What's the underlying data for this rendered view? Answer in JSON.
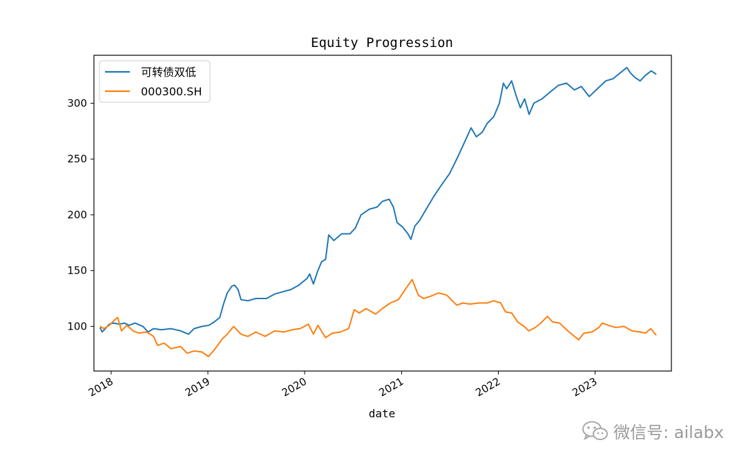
{
  "chart_data": {
    "type": "line",
    "title": "Equity Progression",
    "xlabel": "date",
    "ylabel": "",
    "x_ticks": [
      "2018",
      "2019",
      "2020",
      "2021",
      "2022",
      "2023"
    ],
    "y_ticks": [
      100,
      150,
      200,
      250,
      300
    ],
    "xlim": [
      "2017-10-28",
      "2023-10-16"
    ],
    "ylim": [
      60,
      343
    ],
    "grid": false,
    "legend_position": "upper-left",
    "series": [
      {
        "name": "可转债双低",
        "color": "#1f77b4",
        "points": [
          [
            "2017-11-20",
            99
          ],
          [
            "2017-11-28",
            95
          ],
          [
            "2017-12-10",
            98
          ],
          [
            "2017-12-25",
            102
          ],
          [
            "2018-01-10",
            103
          ],
          [
            "2018-02-01",
            102
          ],
          [
            "2018-02-20",
            103
          ],
          [
            "2018-03-10",
            101
          ],
          [
            "2018-04-01",
            103
          ],
          [
            "2018-05-01",
            100
          ],
          [
            "2018-05-20",
            95
          ],
          [
            "2018-06-10",
            98
          ],
          [
            "2018-07-10",
            97
          ],
          [
            "2018-08-15",
            98
          ],
          [
            "2018-09-20",
            96
          ],
          [
            "2018-10-20",
            93
          ],
          [
            "2018-11-10",
            98
          ],
          [
            "2018-12-10",
            100
          ],
          [
            "2019-01-05",
            101
          ],
          [
            "2019-01-25",
            104
          ],
          [
            "2019-02-15",
            108
          ],
          [
            "2019-03-01",
            120
          ],
          [
            "2019-03-15",
            130
          ],
          [
            "2019-04-01",
            136
          ],
          [
            "2019-04-12",
            137
          ],
          [
            "2019-04-25",
            133
          ],
          [
            "2019-05-06",
            124
          ],
          [
            "2019-06-01",
            123
          ],
          [
            "2019-07-01",
            125
          ],
          [
            "2019-08-10",
            125
          ],
          [
            "2019-09-10",
            129
          ],
          [
            "2019-10-10",
            131
          ],
          [
            "2019-11-10",
            133
          ],
          [
            "2019-12-10",
            137
          ],
          [
            "2020-01-10",
            143
          ],
          [
            "2020-01-20",
            147
          ],
          [
            "2020-02-03",
            138
          ],
          [
            "2020-02-20",
            150
          ],
          [
            "2020-03-05",
            158
          ],
          [
            "2020-03-20",
            160
          ],
          [
            "2020-04-01",
            182
          ],
          [
            "2020-04-20",
            177
          ],
          [
            "2020-05-20",
            183
          ],
          [
            "2020-06-20",
            183
          ],
          [
            "2020-07-10",
            188
          ],
          [
            "2020-08-01",
            200
          ],
          [
            "2020-09-01",
            205
          ],
          [
            "2020-10-01",
            207
          ],
          [
            "2020-10-20",
            212
          ],
          [
            "2020-11-15",
            214
          ],
          [
            "2020-12-01",
            207
          ],
          [
            "2020-12-15",
            193
          ],
          [
            "2021-01-05",
            189
          ],
          [
            "2021-01-25",
            183
          ],
          [
            "2021-02-05",
            178
          ],
          [
            "2021-02-20",
            190
          ],
          [
            "2021-03-10",
            195
          ],
          [
            "2021-04-01",
            204
          ],
          [
            "2021-05-01",
            216
          ],
          [
            "2021-06-01",
            227
          ],
          [
            "2021-07-01",
            237
          ],
          [
            "2021-08-01",
            252
          ],
          [
            "2021-09-01",
            268
          ],
          [
            "2021-09-20",
            278
          ],
          [
            "2021-10-10",
            270
          ],
          [
            "2021-11-01",
            274
          ],
          [
            "2021-11-20",
            282
          ],
          [
            "2021-12-15",
            288
          ],
          [
            "2022-01-05",
            300
          ],
          [
            "2022-01-20",
            318
          ],
          [
            "2022-02-01",
            313
          ],
          [
            "2022-02-20",
            320
          ],
          [
            "2022-03-10",
            306
          ],
          [
            "2022-03-25",
            296
          ],
          [
            "2022-04-10",
            304
          ],
          [
            "2022-04-27",
            290
          ],
          [
            "2022-05-15",
            300
          ],
          [
            "2022-06-15",
            304
          ],
          [
            "2022-07-15",
            310
          ],
          [
            "2022-08-15",
            316
          ],
          [
            "2022-09-15",
            318
          ],
          [
            "2022-10-15",
            312
          ],
          [
            "2022-11-10",
            315
          ],
          [
            "2022-12-10",
            306
          ],
          [
            "2023-01-10",
            313
          ],
          [
            "2023-02-10",
            320
          ],
          [
            "2023-03-10",
            322
          ],
          [
            "2023-04-10",
            328
          ],
          [
            "2023-05-01",
            332
          ],
          [
            "2023-05-15",
            327
          ],
          [
            "2023-06-01",
            323
          ],
          [
            "2023-06-20",
            320
          ],
          [
            "2023-07-10",
            325
          ],
          [
            "2023-08-01",
            329
          ],
          [
            "2023-08-20",
            326
          ]
        ]
      },
      {
        "name": "000300.SH",
        "color": "#ff7f0e",
        "points": [
          [
            "2017-11-20",
            100
          ],
          [
            "2017-12-05",
            98
          ],
          [
            "2017-12-25",
            101
          ],
          [
            "2018-01-15",
            106
          ],
          [
            "2018-01-26",
            108
          ],
          [
            "2018-02-09",
            96
          ],
          [
            "2018-03-01",
            101
          ],
          [
            "2018-03-25",
            96
          ],
          [
            "2018-04-15",
            94
          ],
          [
            "2018-05-15",
            95
          ],
          [
            "2018-06-10",
            91
          ],
          [
            "2018-06-25",
            83
          ],
          [
            "2018-07-20",
            85
          ],
          [
            "2018-08-15",
            80
          ],
          [
            "2018-09-20",
            82
          ],
          [
            "2018-10-15",
            76
          ],
          [
            "2018-11-10",
            78
          ],
          [
            "2018-12-10",
            77
          ],
          [
            "2019-01-03",
            73
          ],
          [
            "2019-01-25",
            79
          ],
          [
            "2019-02-25",
            89
          ],
          [
            "2019-03-15",
            93
          ],
          [
            "2019-04-08",
            100
          ],
          [
            "2019-05-06",
            93
          ],
          [
            "2019-06-01",
            91
          ],
          [
            "2019-07-01",
            95
          ],
          [
            "2019-08-05",
            91
          ],
          [
            "2019-09-10",
            96
          ],
          [
            "2019-10-15",
            95
          ],
          [
            "2019-11-15",
            97
          ],
          [
            "2019-12-15",
            98
          ],
          [
            "2020-01-15",
            102
          ],
          [
            "2020-02-03",
            93
          ],
          [
            "2020-02-20",
            101
          ],
          [
            "2020-03-20",
            90
          ],
          [
            "2020-04-15",
            94
          ],
          [
            "2020-05-15",
            95
          ],
          [
            "2020-06-15",
            98
          ],
          [
            "2020-07-06",
            115
          ],
          [
            "2020-07-25",
            112
          ],
          [
            "2020-08-20",
            116
          ],
          [
            "2020-09-25",
            111
          ],
          [
            "2020-10-20",
            116
          ],
          [
            "2020-11-20",
            121
          ],
          [
            "2020-12-20",
            124
          ],
          [
            "2021-01-20",
            135
          ],
          [
            "2021-02-10",
            142
          ],
          [
            "2021-03-05",
            128
          ],
          [
            "2021-03-25",
            125
          ],
          [
            "2021-04-20",
            127
          ],
          [
            "2021-05-20",
            130
          ],
          [
            "2021-06-20",
            128
          ],
          [
            "2021-07-28",
            119
          ],
          [
            "2021-08-20",
            121
          ],
          [
            "2021-09-15",
            120
          ],
          [
            "2021-10-20",
            121
          ],
          [
            "2021-11-20",
            121
          ],
          [
            "2021-12-15",
            123
          ],
          [
            "2022-01-10",
            121
          ],
          [
            "2022-01-28",
            113
          ],
          [
            "2022-02-20",
            112
          ],
          [
            "2022-03-15",
            104
          ],
          [
            "2022-04-08",
            100
          ],
          [
            "2022-04-26",
            96
          ],
          [
            "2022-05-20",
            99
          ],
          [
            "2022-06-10",
            103
          ],
          [
            "2022-07-05",
            109
          ],
          [
            "2022-07-25",
            104
          ],
          [
            "2022-08-20",
            103
          ],
          [
            "2022-09-20",
            96
          ],
          [
            "2022-10-31",
            88
          ],
          [
            "2022-11-20",
            94
          ],
          [
            "2022-12-20",
            95
          ],
          [
            "2023-01-15",
            99
          ],
          [
            "2023-01-28",
            103
          ],
          [
            "2023-02-20",
            101
          ],
          [
            "2023-03-20",
            99
          ],
          [
            "2023-04-20",
            100
          ],
          [
            "2023-05-20",
            96
          ],
          [
            "2023-06-20",
            95
          ],
          [
            "2023-07-10",
            94
          ],
          [
            "2023-07-30",
            98
          ],
          [
            "2023-08-20",
            92
          ]
        ]
      }
    ]
  },
  "watermark": {
    "text": "微信号: ailabx",
    "icon": "wechat-icon"
  }
}
